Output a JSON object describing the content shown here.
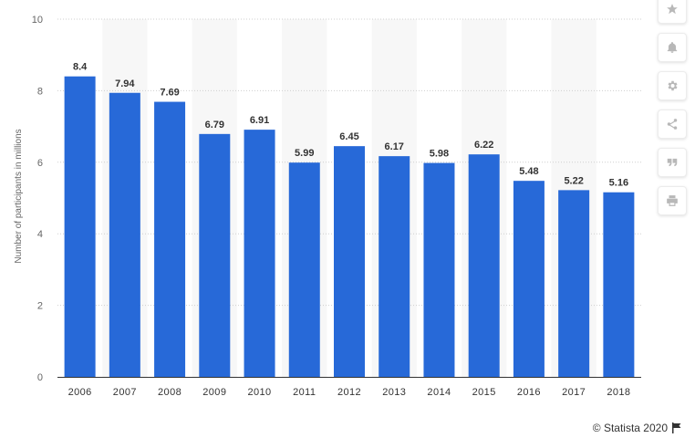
{
  "chart_data": {
    "type": "bar",
    "categories": [
      "2006",
      "2007",
      "2008",
      "2009",
      "2010",
      "2011",
      "2012",
      "2013",
      "2014",
      "2015",
      "2016",
      "2017",
      "2018"
    ],
    "values": [
      8.4,
      7.94,
      7.69,
      6.79,
      6.91,
      5.99,
      6.45,
      6.17,
      5.98,
      6.22,
      5.48,
      5.22,
      5.16
    ],
    "data_labels": [
      "8.4",
      "7.94",
      "7.69",
      "6.79",
      "6.91",
      "5.99",
      "6.45",
      "6.17",
      "5.98",
      "6.22",
      "5.48",
      "5.22",
      "5.16"
    ],
    "ylabel": "Number of participants in millions",
    "ylim": [
      0,
      10
    ],
    "yticks": [
      "0",
      "2",
      "4",
      "6",
      "8",
      "10"
    ],
    "grid": true,
    "bar_color": "#2769d8"
  },
  "toolbar": {
    "items": [
      "star-icon",
      "bell-icon",
      "gear-icon",
      "share-icon",
      "quote-icon",
      "print-icon"
    ]
  },
  "credit": {
    "text": "© Statista 2020"
  }
}
